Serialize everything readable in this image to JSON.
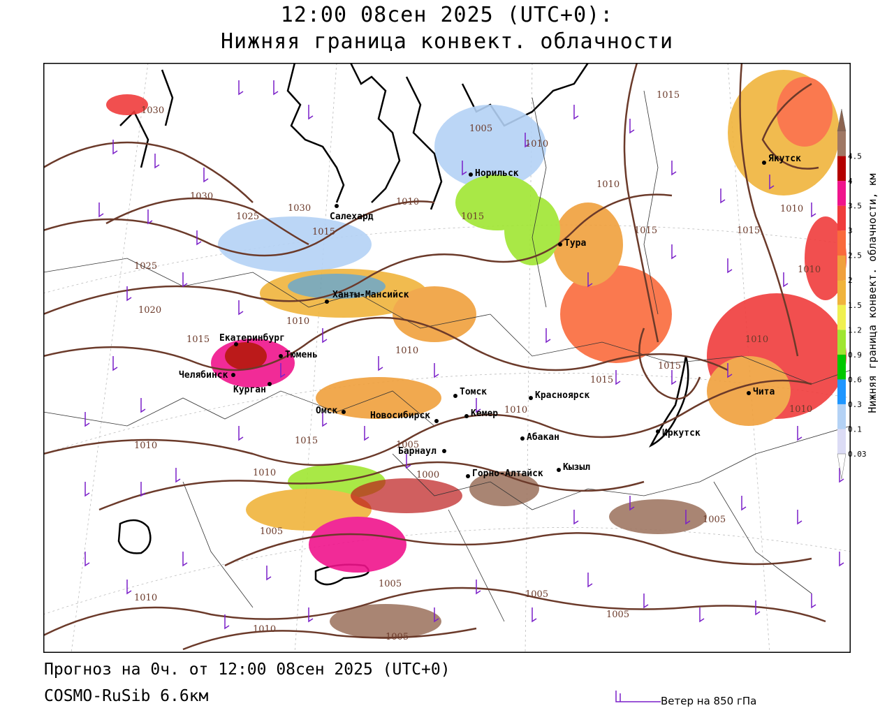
{
  "header": {
    "line1": "12:00 08сен 2025 (UTC+0):",
    "line2": "Нижняя граница конвект. облачности"
  },
  "footer": {
    "forecast": "Прогноз на 0ч. от 12:00 08сен 2025 (UTC+0)",
    "model": "COSMO-RuSib 6.6км",
    "wind_label": "Ветер на 850 гПа"
  },
  "legend": {
    "title": "Нижняя граница конвект. облачности, км",
    "levels": [
      {
        "label": "0.03",
        "color": "#dcdcf5"
      },
      {
        "label": "0.1",
        "color": "#b4d2f5"
      },
      {
        "label": "0.3",
        "color": "#1e96ff"
      },
      {
        "label": "0.6",
        "color": "#00c800"
      },
      {
        "label": "0.9",
        "color": "#a0e632"
      },
      {
        "label": "1.2",
        "color": "#f0f050"
      },
      {
        "label": "1.5",
        "color": "#f0b43c"
      },
      {
        "label": "2",
        "color": "#f0a03c"
      },
      {
        "label": "2.5",
        "color": "#fa6a3c"
      },
      {
        "label": "3",
        "color": "#f03c3c"
      },
      {
        "label": "3.5",
        "color": "#f0148c"
      },
      {
        "label": "4",
        "color": "#b40000"
      },
      {
        "label": "4.5",
        "color": "#a07864"
      }
    ],
    "top_color": "#8c6450"
  },
  "cities": [
    {
      "name": "Якутск"
    },
    {
      "name": "Норильск"
    },
    {
      "name": "Салехард"
    },
    {
      "name": "Тура"
    },
    {
      "name": "Ханты-Мансийск"
    },
    {
      "name": "Екатеринбург"
    },
    {
      "name": "Тюмень"
    },
    {
      "name": "Челябинск"
    },
    {
      "name": "Курган"
    },
    {
      "name": "Томск"
    },
    {
      "name": "Красноярск"
    },
    {
      "name": "Омск"
    },
    {
      "name": "Новосибирск"
    },
    {
      "name": "Кемер"
    },
    {
      "name": "Абакан"
    },
    {
      "name": "Барнаул"
    },
    {
      "name": "Горно-Алтайск"
    },
    {
      "name": "Кызыл"
    },
    {
      "name": "Иркутск"
    },
    {
      "name": "Чита"
    }
  ],
  "isobars": [
    "1030",
    "1030",
    "1025",
    "1030",
    "1015",
    "1025",
    "1020",
    "1010",
    "1010",
    "1015",
    "1010",
    "1005",
    "1005",
    "1010",
    "1015",
    "1010",
    "1015",
    "1015",
    "1010",
    "1015",
    "1005",
    "1005",
    "1010",
    "1000",
    "1005",
    "1005",
    "1005",
    "1010",
    "1010",
    "1005",
    "1010",
    "1015",
    "1015",
    "1015",
    "1010",
    "1010",
    "1010",
    "1010"
  ]
}
